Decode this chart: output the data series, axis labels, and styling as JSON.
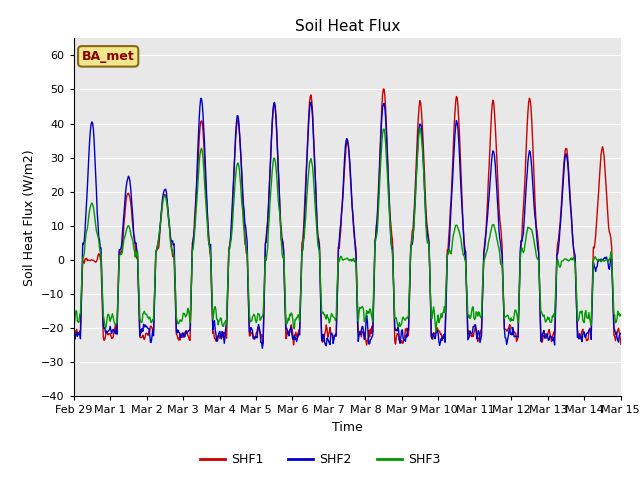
{
  "title": "Soil Heat Flux",
  "ylabel": "Soil Heat Flux (W/m2)",
  "xlabel": "Time",
  "ylim": [
    -40,
    65
  ],
  "yticks": [
    -40,
    -30,
    -20,
    -10,
    0,
    10,
    20,
    30,
    40,
    50,
    60
  ],
  "site_label": "BA_met",
  "legend_labels": [
    "SHF1",
    "SHF2",
    "SHF3"
  ],
  "line_colors": [
    "#cc0000",
    "#0000cc",
    "#009900"
  ],
  "plot_bg_color": "#e8e8e8",
  "fig_bg_color": "#ffffff",
  "x_tick_labels": [
    "Feb 29",
    "Mar 1",
    "Mar 2",
    "Mar 3",
    "Mar 4",
    "Mar 5",
    "Mar 6",
    "Mar 7",
    "Mar 8",
    "Mar 9",
    "Mar 10",
    "Mar 11",
    "Mar 12",
    "Mar 13",
    "Mar 14",
    "Mar 15"
  ],
  "line_width": 1.0,
  "day_peaks_shf1": [
    0.0,
    20.0,
    20.0,
    42.0,
    42.0,
    46.0,
    49.0,
    35.0,
    51.0,
    47.0,
    48.0,
    47.0,
    48.0,
    33.0,
    33.0,
    0.0
  ],
  "day_peaks_shf2": [
    41.0,
    25.0,
    21.0,
    48.0,
    43.0,
    47.0,
    47.0,
    37.0,
    47.0,
    41.0,
    41.0,
    32.0,
    32.0,
    31.0,
    0.0,
    0.0
  ],
  "day_peaks_shf3": [
    17.0,
    10.0,
    19.0,
    33.0,
    29.0,
    30.0,
    30.0,
    0.0,
    39.0,
    39.0,
    10.0,
    10.0,
    10.0,
    0.0,
    0.0,
    0.0
  ],
  "night_base_shf1": -22.0,
  "night_base_shf2": -22.0,
  "night_base_shf3": -17.0
}
